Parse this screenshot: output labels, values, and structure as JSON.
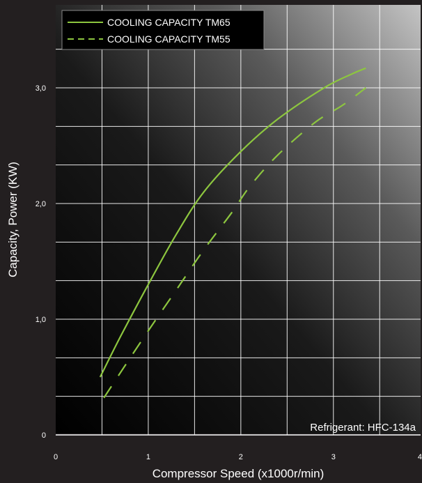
{
  "chart_data": {
    "type": "line",
    "xlabel": "Compressor Speed (x1000r/min)",
    "ylabel": "Capacity, Power (KW)",
    "xlim": [
      0,
      4
    ],
    "ylim": [
      0,
      3.6
    ],
    "x_ticks": [
      {
        "value": 0,
        "label": "0"
      },
      {
        "value": 1,
        "label": "1"
      },
      {
        "value": 2,
        "label": "2"
      },
      {
        "value": 3,
        "label": "3"
      },
      {
        "value": 4,
        "label": "4"
      }
    ],
    "y_ticks": [
      {
        "value": 0,
        "label": "0"
      },
      {
        "value": 1,
        "label": "1,0"
      },
      {
        "value": 2,
        "label": "2,0"
      },
      {
        "value": 3,
        "label": "3,0"
      }
    ],
    "grid": true,
    "legend_position": "top-left",
    "annotation": "Refrigerant: HFC-134a",
    "series": [
      {
        "name": "COOLING CAPACITY TM65",
        "style": "solid",
        "color": "#8dc63f",
        "x": [
          0.48,
          0.7,
          1.0,
          1.3,
          1.6,
          2.0,
          2.4,
          2.9,
          3.2,
          3.35
        ],
        "y": [
          0.5,
          0.85,
          1.3,
          1.73,
          2.1,
          2.45,
          2.73,
          3.0,
          3.12,
          3.17
        ]
      },
      {
        "name": "COOLING CAPACITY TM55",
        "style": "dashed",
        "color": "#8dc63f",
        "x": [
          0.52,
          0.75,
          1.0,
          1.3,
          1.6,
          1.9,
          2.1,
          2.4,
          2.8,
          3.1,
          3.35
        ],
        "y": [
          0.32,
          0.6,
          0.9,
          1.25,
          1.6,
          1.92,
          2.15,
          2.42,
          2.7,
          2.85,
          3.0
        ]
      }
    ]
  }
}
